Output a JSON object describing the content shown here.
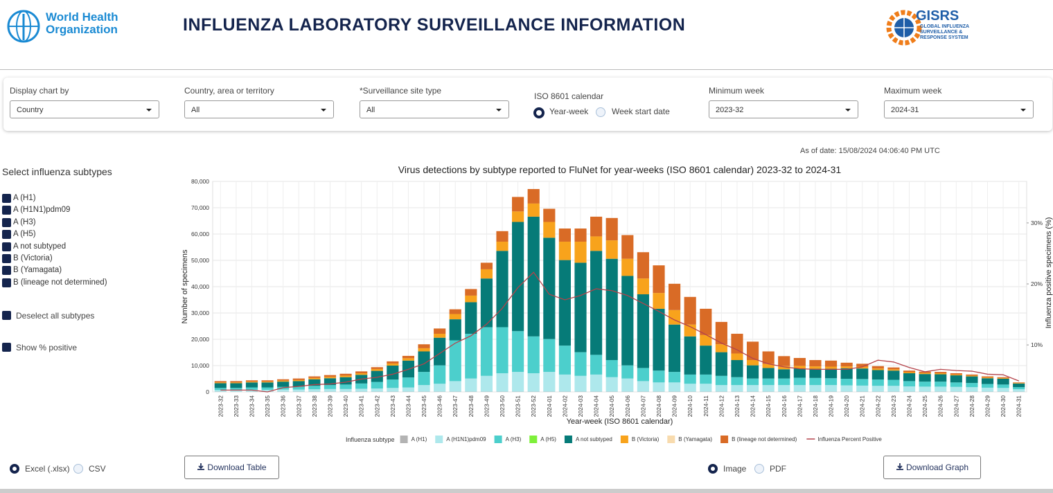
{
  "header": {
    "who_logo": [
      "World Health",
      "Organization"
    ],
    "title": "INFLUENZA LABORATORY SURVEILLANCE INFORMATION",
    "gisrs_logo": "GISRS",
    "gisrs_tagline": [
      "GLOBAL INFLUENZA",
      "SURVEILLANCE &",
      "RESPONSE SYSTEM"
    ]
  },
  "filters": [
    {
      "label": "Display chart by",
      "value": "Country"
    },
    {
      "label": "Country, area or territory",
      "value": "All"
    },
    {
      "label": "*Surveillance site type",
      "value": "All"
    },
    {
      "label": "Minimum week",
      "value": "2023-32"
    },
    {
      "label": "Maximum week",
      "value": "2024-31"
    }
  ],
  "calendar": {
    "label": "ISO 8601 calendar",
    "options": [
      "Year-week",
      "Week start date"
    ],
    "selected": 0
  },
  "as_of": "As of date: 15/08/2024 04:06:40 PM UTC",
  "sidebar": {
    "title": "Select influenza subtypes",
    "subtypes": [
      "A (H1)",
      "A (H1N1)pdm09",
      "A (H3)",
      "A (H5)",
      "A not subtyped",
      "B (Victoria)",
      "B (Yamagata)",
      "B (lineage not determined)"
    ],
    "deselect": "Deselect all subtypes",
    "show_positive": "Show % positive"
  },
  "export_table": {
    "options": [
      "Excel (.xlsx)",
      "CSV"
    ],
    "selected": 0,
    "button": "Download Table"
  },
  "export_graph": {
    "options": [
      "Image",
      "PDF"
    ],
    "selected": 0,
    "button": "Download Graph"
  },
  "chart_data": {
    "type": "bar",
    "stacked": true,
    "grid": true,
    "title": "Virus detections by subtype reported to FluNet for year-weeks (ISO 8601 calendar) 2023-32 to 2024-31",
    "x_label": "Year-week (ISO 8601 calendar)",
    "y_label": "Number of specimens",
    "y2_label": "Influenza positive specimens (%)",
    "legend_title": "Influenza subtype",
    "categories": [
      "2023-32",
      "2023-33",
      "2023-34",
      "2023-35",
      "2023-36",
      "2023-37",
      "2023-38",
      "2023-39",
      "2023-40",
      "2023-41",
      "2023-42",
      "2023-43",
      "2023-44",
      "2023-45",
      "2023-46",
      "2023-47",
      "2023-48",
      "2023-49",
      "2023-50",
      "2023-51",
      "2023-52",
      "2024-01",
      "2024-02",
      "2024-03",
      "2024-04",
      "2024-05",
      "2024-06",
      "2024-07",
      "2024-08",
      "2024-09",
      "2024-10",
      "2024-11",
      "2024-12",
      "2024-13",
      "2024-14",
      "2024-15",
      "2024-16",
      "2024-17",
      "2024-18",
      "2024-19",
      "2024-20",
      "2024-21",
      "2024-22",
      "2024-23",
      "2024-24",
      "2024-25",
      "2024-26",
      "2024-27",
      "2024-28",
      "2024-29",
      "2024-30",
      "2024-31"
    ],
    "ylim": [
      0,
      80000
    ],
    "yticks": [
      0,
      {
        "value": 10000,
        "label": "10,000"
      },
      {
        "value": 20000,
        "label": "20,000"
      },
      {
        "value": 30000,
        "label": "30,000"
      },
      {
        "value": 40000,
        "label": "40,000"
      },
      {
        "value": 50000,
        "label": "50,000"
      },
      {
        "value": 60000,
        "label": "60,000"
      },
      {
        "value": 70000,
        "label": "70,000"
      },
      {
        "value": 80000,
        "label": "80,000"
      }
    ],
    "y2lim": [
      2.3,
      36.8
    ],
    "y2ticks": [
      {
        "value": 10,
        "label": "10%"
      },
      {
        "value": 20,
        "label": "20%"
      },
      {
        "value": 30,
        "label": "30%"
      }
    ],
    "series": [
      {
        "name": "A (H1)",
        "color": "#b3b3b3",
        "values": [
          100,
          100,
          100,
          100,
          100,
          100,
          100,
          100,
          100,
          100,
          100,
          100,
          100,
          100,
          100,
          100,
          100,
          100,
          100,
          100,
          100,
          100,
          100,
          100,
          100,
          100,
          100,
          100,
          100,
          100,
          100,
          100,
          100,
          100,
          100,
          100,
          100,
          100,
          100,
          100,
          100,
          100,
          100,
          100,
          100,
          100,
          100,
          100,
          100,
          100,
          100,
          100
        ]
      },
      {
        "name": "A (H1N1)pdm09",
        "color": "#aee8ec",
        "values": [
          600,
          600,
          700,
          700,
          800,
          800,
          900,
          1000,
          1000,
          1100,
          1200,
          1400,
          1600,
          2500,
          3000,
          4000,
          5000,
          6000,
          7000,
          7500,
          7000,
          7500,
          6500,
          6000,
          6500,
          5500,
          5000,
          4000,
          3500,
          3500,
          3000,
          3000,
          2500,
          2500,
          2500,
          2500,
          2500,
          2500,
          2500,
          2500,
          2400,
          2300,
          2200,
          2200,
          2000,
          1900,
          1900,
          1800,
          1700,
          1500,
          1400,
          900
        ]
      },
      {
        "name": "A (H3)",
        "color": "#4ccfcc",
        "values": [
          800,
          800,
          900,
          900,
          1000,
          1100,
          1300,
          1500,
          1700,
          2000,
          2500,
          3200,
          3800,
          5000,
          7000,
          15500,
          17000,
          18500,
          17500,
          15500,
          14000,
          12500,
          11000,
          9000,
          7500,
          6500,
          5000,
          5000,
          4500,
          4000,
          3500,
          3500,
          3500,
          3000,
          2500,
          2500,
          2500,
          2800,
          2700,
          2600,
          2500,
          2500,
          2400,
          2300,
          2000,
          1900,
          1900,
          1700,
          1600,
          1400,
          1300,
          800
        ]
      },
      {
        "name": "A (H5)",
        "color": "#7ef03a",
        "values": [
          0,
          0,
          0,
          0,
          0,
          0,
          0,
          0,
          0,
          0,
          0,
          0,
          0,
          0,
          0,
          0,
          0,
          0,
          0,
          0,
          0,
          0,
          0,
          0,
          0,
          0,
          0,
          0,
          0,
          0,
          0,
          0,
          0,
          0,
          0,
          0,
          0,
          0,
          0,
          0,
          0,
          0,
          0,
          0,
          0,
          0,
          0,
          0,
          0,
          0,
          0,
          0
        ]
      },
      {
        "name": "A not subtyped",
        "color": "#067b78",
        "values": [
          1800,
          1800,
          1900,
          1900,
          2000,
          2100,
          2500,
          2600,
          2800,
          3300,
          4200,
          5300,
          6400,
          7800,
          10500,
          8000,
          12000,
          18500,
          29000,
          41500,
          45500,
          38500,
          32500,
          34000,
          39500,
          38500,
          34000,
          28000,
          23500,
          18000,
          14500,
          11000,
          9000,
          6500,
          5000,
          4000,
          3500,
          3500,
          3500,
          3600,
          4000,
          4000,
          3600,
          3500,
          3000,
          2900,
          2800,
          2700,
          2500,
          2200,
          2200,
          1400
        ]
      },
      {
        "name": "B (Victoria)",
        "color": "#f8a31c",
        "values": [
          300,
          300,
          300,
          300,
          400,
          400,
          500,
          500,
          600,
          600,
          700,
          800,
          900,
          1200,
          1500,
          2000,
          2500,
          3500,
          3500,
          4000,
          5000,
          6000,
          7000,
          8000,
          5500,
          7000,
          6500,
          6000,
          6000,
          5500,
          4500,
          4000,
          3000,
          2500,
          2000,
          1500,
          1200,
          1000,
          900,
          800,
          700,
          700,
          600,
          500,
          400,
          400,
          400,
          300,
          300,
          300,
          300,
          200
        ]
      },
      {
        "name": "B (Yamagata)",
        "color": "#f8dbae",
        "values": [
          0,
          0,
          0,
          0,
          0,
          0,
          0,
          0,
          0,
          0,
          0,
          0,
          0,
          0,
          0,
          0,
          0,
          0,
          0,
          0,
          0,
          0,
          0,
          0,
          0,
          0,
          0,
          0,
          0,
          0,
          0,
          0,
          0,
          0,
          0,
          0,
          0,
          0,
          0,
          0,
          0,
          0,
          0,
          0,
          0,
          0,
          0,
          0,
          0,
          0,
          0,
          0
        ]
      },
      {
        "name": "B (lineage not determined)",
        "color": "#d96b26",
        "values": [
          500,
          500,
          500,
          500,
          500,
          600,
          600,
          700,
          700,
          700,
          700,
          800,
          900,
          1500,
          2000,
          1800,
          2500,
          2500,
          4000,
          5500,
          5500,
          5000,
          5000,
          5000,
          7500,
          8500,
          9000,
          10000,
          10500,
          10000,
          10500,
          10000,
          8500,
          7500,
          7000,
          4800,
          3800,
          3000,
          2400,
          2300,
          1400,
          1100,
          900,
          700,
          600,
          500,
          500,
          500,
          400,
          400,
          300,
          200
        ]
      },
      {
        "name": "Influenza Percent Positive",
        "type": "line",
        "axis": "y2",
        "color": "#b4434a",
        "values": [
          2.6,
          2.6,
          2.6,
          2.3,
          3.0,
          3.2,
          3.5,
          3.6,
          3.9,
          4.4,
          4.7,
          5.2,
          6.0,
          6.9,
          8.6,
          10.3,
          11.5,
          13.4,
          16.0,
          19.4,
          21.9,
          18.3,
          17.4,
          18.1,
          19.2,
          18.9,
          18.1,
          16.8,
          15.5,
          14.1,
          13.0,
          11.7,
          10.3,
          9.2,
          7.8,
          6.9,
          6.4,
          6.1,
          6.0,
          6.0,
          6.0,
          6.4,
          7.5,
          7.2,
          6.3,
          5.6,
          6.0,
          5.8,
          5.7,
          5.2,
          5.1,
          4.1
        ]
      }
    ]
  }
}
